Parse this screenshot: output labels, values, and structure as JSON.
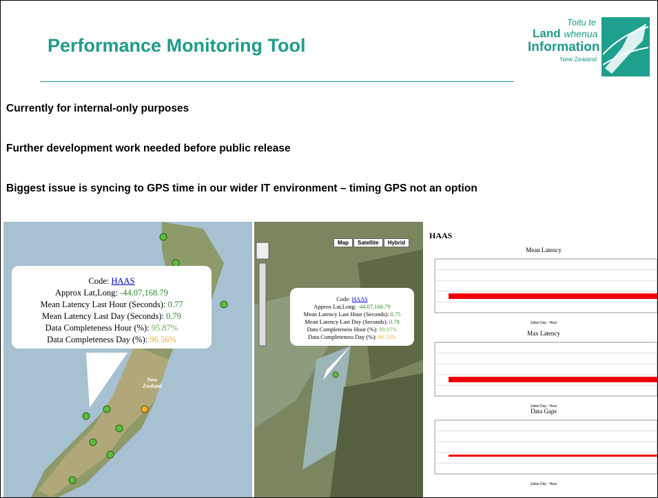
{
  "header": {
    "title": "Performance Monitoring Tool",
    "logo": {
      "line1": "Toitu te",
      "land": "Land",
      "whenua": "whenua",
      "information": "Information",
      "country": "New Zealand"
    }
  },
  "bullets": [
    "Currently for internal-only purposes",
    "Further development work needed before public release",
    "Biggest issue is syncing to GPS time in our wider IT environment – timing GPS not an option"
  ],
  "map_overview": {
    "label": "New Zealand",
    "popup": {
      "code_label": "Code:",
      "code": "HAAS",
      "rows": [
        {
          "label": "Approx Lat,Long:",
          "value": "-44.07,168.79"
        },
        {
          "label": "Mean Latency Last Hour (Seconds):",
          "value": "0.77"
        },
        {
          "label": "Mean Latency Last Day (Seconds):",
          "value": "0.79"
        },
        {
          "label": "Data Completeness Hour (%):",
          "value": "95.87%"
        },
        {
          "label": "Data Completeness Day (%):",
          "value": "96.56%"
        }
      ]
    }
  },
  "map_detail": {
    "buttons": [
      "Map",
      "Satellite",
      "Hybrid"
    ],
    "popup": {
      "code_label": "Code:",
      "code": "HAAS",
      "rows": [
        {
          "label": "Approx Lat,Long:",
          "value": "-44.07,168.79"
        },
        {
          "label": "Mean Latency Last Hour (Seconds):",
          "value": "0.75"
        },
        {
          "label": "Mean Latency Last Day (Seconds):",
          "value": "0.78"
        },
        {
          "label": "Data Completeness Hour (%):",
          "value": "99.97%"
        },
        {
          "label": "Data Completeness Day (%):",
          "value": "96.53%"
        }
      ]
    }
  },
  "charts": {
    "station": "HAAS",
    "panels": [
      {
        "title": "Mean Latency",
        "x_label": "Julian Day - Hour"
      },
      {
        "title": "Max Latency",
        "x_label": "Julian Day - Hour"
      },
      {
        "title": "Data Gaps",
        "x_label": "Julian Day - Hour"
      }
    ]
  }
}
